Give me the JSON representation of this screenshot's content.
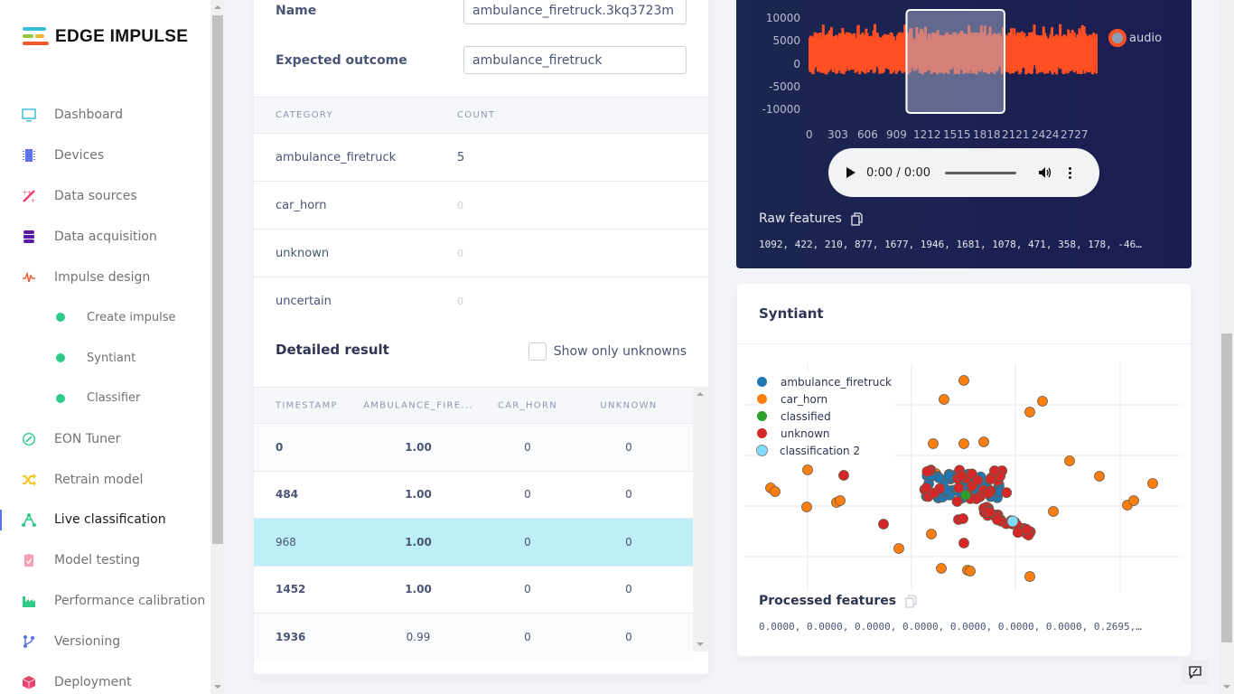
{
  "brand": {
    "name": "EDGE IMPULSE",
    "logo_colors": [
      "#3bbfd9",
      "#98c93c",
      "#f2b631",
      "#f0592b"
    ]
  },
  "sidebar": {
    "items": [
      {
        "label": "Dashboard",
        "icon": "monitor-icon",
        "color": "#3bbfd9"
      },
      {
        "label": "Devices",
        "icon": "chip-icon",
        "color": "#5b73e8"
      },
      {
        "label": "Data sources",
        "icon": "magic-wand-icon",
        "color": "#e8416a"
      },
      {
        "label": "Data acquisition",
        "icon": "database-icon",
        "color": "#5a18a8"
      },
      {
        "label": "Impulse design",
        "icon": "pulse-icon",
        "color": "#f0592b"
      },
      {
        "label": "Create impulse",
        "icon": "dot-icon",
        "sub": true
      },
      {
        "label": "Syntiant",
        "icon": "dot-icon",
        "sub": true
      },
      {
        "label": "Classifier",
        "icon": "dot-icon",
        "sub": true
      },
      {
        "label": "EON Tuner",
        "icon": "compass-icon",
        "color": "#2ecc87"
      },
      {
        "label": "Retrain model",
        "icon": "shuffle-icon",
        "color": "#f5c518"
      },
      {
        "label": "Live classification",
        "icon": "network-icon",
        "color": "#2ecc87",
        "active": true
      },
      {
        "label": "Model testing",
        "icon": "clipboard-check-icon",
        "color": "#f4a1b4"
      },
      {
        "label": "Performance calibration",
        "icon": "factory-icon",
        "color": "#2ecc87"
      },
      {
        "label": "Versioning",
        "icon": "branch-icon",
        "color": "#5b73e8"
      },
      {
        "label": "Deployment",
        "icon": "box-icon",
        "color": "#e8416a"
      }
    ]
  },
  "sample": {
    "name_label": "Name",
    "name_value": "ambulance_firetruck.3kq3723m",
    "expected_label": "Expected outcome",
    "expected_value": "ambulance_firetruck"
  },
  "summary_table": {
    "headers": [
      "CATEGORY",
      "COUNT"
    ],
    "rows": [
      {
        "category": "ambulance_firetruck",
        "count": "5"
      },
      {
        "category": "car_horn",
        "count": "0"
      },
      {
        "category": "unknown",
        "count": "0"
      },
      {
        "category": "uncertain",
        "count": "0"
      }
    ]
  },
  "detailed": {
    "title": "Detailed result",
    "filter_label": "Show only unknowns",
    "filter_checked": false,
    "headers": [
      "TIMESTAMP",
      "AMBULANCE_FIRE...",
      "CAR_HORN",
      "UNKNOWN"
    ],
    "rows": [
      {
        "timestamp": "0",
        "ambulance": "1.00",
        "car_horn": "0",
        "unknown": "0"
      },
      {
        "timestamp": "484",
        "ambulance": "1.00",
        "car_horn": "0",
        "unknown": "0"
      },
      {
        "timestamp": "968",
        "ambulance": "1.00",
        "car_horn": "0",
        "unknown": "0",
        "selected": true
      },
      {
        "timestamp": "1452",
        "ambulance": "1.00",
        "car_horn": "0",
        "unknown": "0"
      },
      {
        "timestamp": "1936",
        "ambulance": "0.99",
        "car_horn": "0",
        "unknown": "0"
      }
    ]
  },
  "waveform": {
    "legend": "audio",
    "y_ticks": [
      "10000",
      "5000",
      "0",
      "-5000",
      "-10000"
    ],
    "x_ticks": [
      "0",
      "303",
      "606",
      "909",
      "1212",
      "1515",
      "1818",
      "2121",
      "2424",
      "2727"
    ],
    "series_color": "#ff4f23",
    "window_start": 1000,
    "window_end": 2000
  },
  "audio_player": {
    "time": "0:00 / 0:00"
  },
  "raw_features": {
    "title": "Raw features",
    "values": "1092, 422, 210, 877, 1677, 1946, 1681, 1078, 471, 358, 178, -46…"
  },
  "syntiant": {
    "title": "Syntiant",
    "legend": [
      {
        "label": "ambulance_firetruck",
        "color": "#1f77b4"
      },
      {
        "label": "car_horn",
        "color": "#ff7f0e"
      },
      {
        "label": "classified",
        "color": "#2ca02c"
      },
      {
        "label": "unknown",
        "color": "#d62728"
      },
      {
        "label": "classification 2",
        "color": "#7fdbff"
      }
    ]
  },
  "processed_features": {
    "title": "Processed features",
    "values": "0.0000, 0.0000, 0.0000, 0.0000, 0.0000, 0.0000, 0.0000, 0.2695,…"
  }
}
